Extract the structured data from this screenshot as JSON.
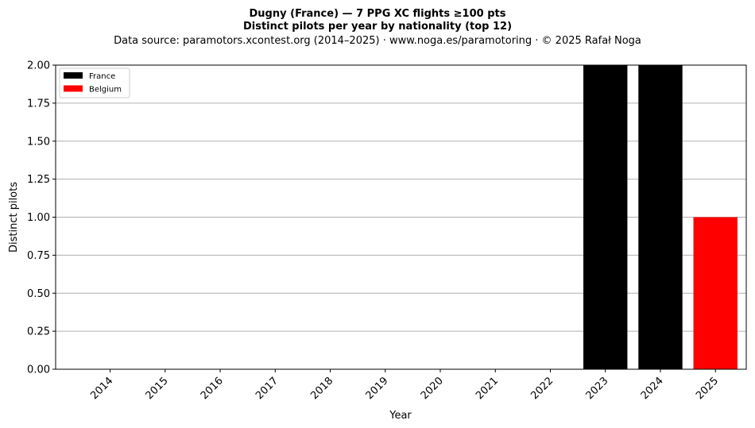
{
  "chart_data": {
    "type": "bar",
    "title": "Dugny (France)  —  7 PPG XC flights ≥100 pts",
    "subtitle": "Distinct pilots per year by nationality (top 12)",
    "source": "Data source: paramotors.xcontest.org (2014–2025)  ·  www.noga.es/paramotoring  ·  © 2025 Rafał Noga",
    "xlabel": "Year",
    "ylabel": "Distinct pilots",
    "categories": [
      "2014",
      "2015",
      "2016",
      "2017",
      "2018",
      "2019",
      "2020",
      "2021",
      "2022",
      "2023",
      "2024",
      "2025"
    ],
    "ylim": [
      0,
      2
    ],
    "yticks": [
      0,
      0.25,
      0.5,
      0.75,
      1,
      1.25,
      1.5,
      1.75,
      2
    ],
    "ytick_labels": [
      "0.00",
      "0.25",
      "0.50",
      "0.75",
      "1.00",
      "1.25",
      "1.50",
      "1.75",
      "2.00"
    ],
    "grid": "horizontal",
    "legend_position": "top-left",
    "stacked": true,
    "series": [
      {
        "name": "France",
        "color": "#000000",
        "values": [
          0,
          0,
          0,
          0,
          0,
          0,
          0,
          0,
          0,
          2,
          2,
          0
        ]
      },
      {
        "name": "Belgium",
        "color": "#ff0000",
        "values": [
          0,
          0,
          0,
          0,
          0,
          0,
          0,
          0,
          0,
          0,
          0,
          1
        ]
      }
    ]
  }
}
